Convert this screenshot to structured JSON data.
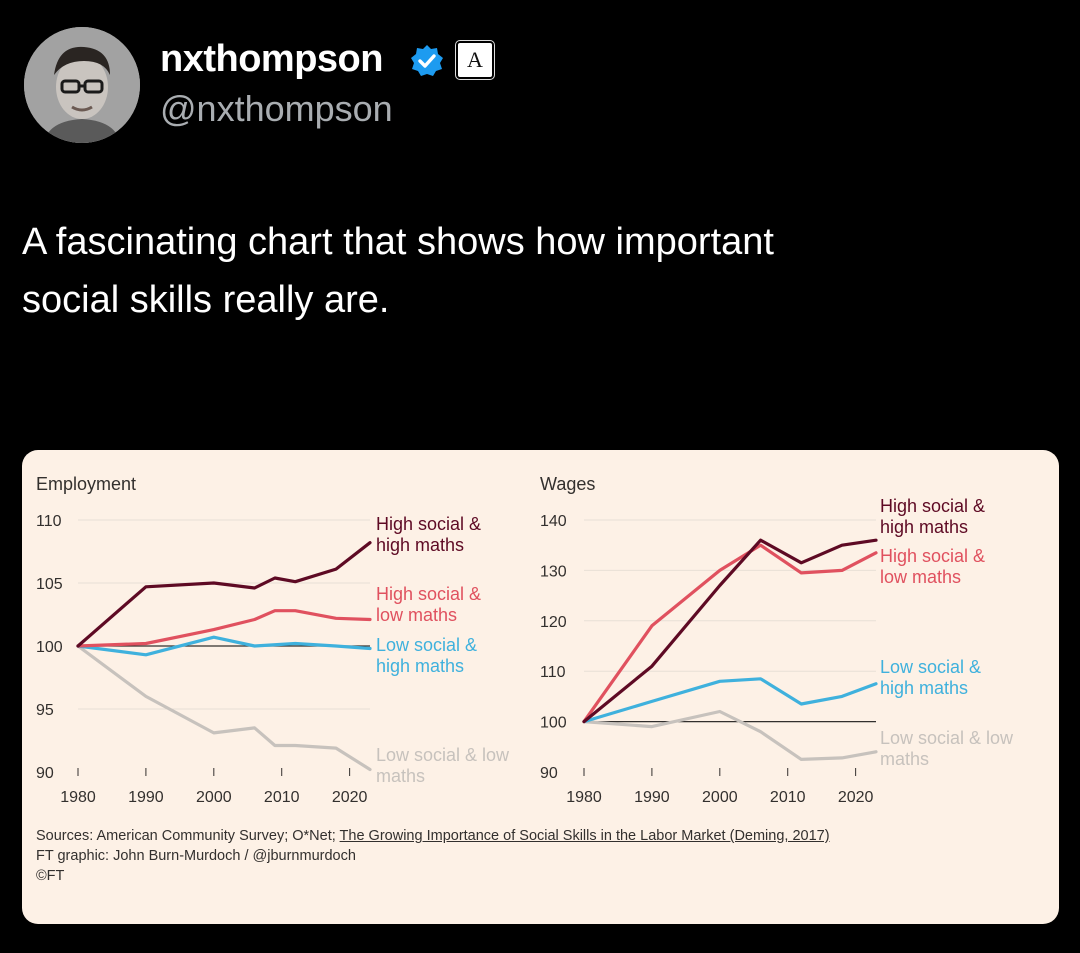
{
  "tweet": {
    "display_name": "nxthompson",
    "handle": "@nxthompson",
    "affiliate_badge": "A",
    "text_line1": "A fascinating chart that shows how important",
    "text_line2": "social skills really are."
  },
  "icons": {
    "verified": "verified-check-icon",
    "avatar": "user-avatar"
  },
  "colors": {
    "background": "#000000",
    "card": "#fdf1e6",
    "high_social_high_maths": "#5e0a24",
    "high_social_low_maths": "#e0515f",
    "low_social_high_maths": "#3fb1dd",
    "low_social_low_maths": "#c7c2bd",
    "verified": "#1d9bf0"
  },
  "chart_data": [
    {
      "type": "line",
      "title": "Employment",
      "ylim": [
        90,
        110
      ],
      "yticks": [
        90,
        95,
        100,
        105,
        110
      ],
      "xticks": [
        1980,
        1990,
        2000,
        2010,
        2020
      ],
      "xlim": [
        1980,
        2023
      ],
      "reference_line": 100,
      "series": [
        {
          "name": "High social & high maths",
          "label_lines": [
            "High social &",
            "high maths"
          ],
          "color_key": "high_social_high_maths",
          "x": [
            1980,
            1990,
            2000,
            2006,
            2009,
            2012,
            2018,
            2023
          ],
          "y": [
            100,
            104.7,
            105,
            104.6,
            105.4,
            105.1,
            106.1,
            108.2
          ]
        },
        {
          "name": "High social & low maths",
          "label_lines": [
            "High social &",
            "low maths"
          ],
          "color_key": "high_social_low_maths",
          "x": [
            1980,
            1990,
            2000,
            2006,
            2009,
            2012,
            2018,
            2023
          ],
          "y": [
            100,
            100.2,
            101.3,
            102.1,
            102.8,
            102.8,
            102.2,
            102.1
          ]
        },
        {
          "name": "Low social & high maths",
          "label_lines": [
            "Low social &",
            "high maths"
          ],
          "color_key": "low_social_high_maths",
          "x": [
            1980,
            1990,
            2000,
            2006,
            2012,
            2018,
            2023
          ],
          "y": [
            100,
            99.3,
            100.7,
            100,
            100.2,
            100,
            99.8
          ]
        },
        {
          "name": "Low social & low maths",
          "label_lines": [
            "Low social & low",
            "maths"
          ],
          "color_key": "low_social_low_maths",
          "x": [
            1980,
            1990,
            2000,
            2006,
            2009,
            2012,
            2018,
            2023
          ],
          "y": [
            100,
            96,
            93.1,
            93.5,
            92.1,
            92.1,
            91.9,
            90.2
          ]
        }
      ]
    },
    {
      "type": "line",
      "title": "Wages",
      "ylim": [
        90,
        140
      ],
      "yticks": [
        90,
        100,
        110,
        120,
        130,
        140
      ],
      "xticks": [
        1980,
        1990,
        2000,
        2010,
        2020
      ],
      "xlim": [
        1980,
        2023
      ],
      "reference_line": 100,
      "series": [
        {
          "name": "High social & high maths",
          "label_lines": [
            "High social &",
            "high maths"
          ],
          "color_key": "high_social_high_maths",
          "x": [
            1980,
            1990,
            2000,
            2006,
            2012,
            2018,
            2023
          ],
          "y": [
            100,
            111,
            127,
            136,
            131.5,
            135,
            136
          ]
        },
        {
          "name": "High social & low maths",
          "label_lines": [
            "High social &",
            "low maths"
          ],
          "color_key": "high_social_low_maths",
          "x": [
            1980,
            1990,
            2000,
            2006,
            2012,
            2018,
            2023
          ],
          "y": [
            100,
            119,
            130,
            135,
            129.5,
            130,
            133.5
          ]
        },
        {
          "name": "Low social & high maths",
          "label_lines": [
            "Low social &",
            "high maths"
          ],
          "color_key": "low_social_high_maths",
          "x": [
            1980,
            1990,
            2000,
            2006,
            2012,
            2018,
            2023
          ],
          "y": [
            100,
            104,
            108,
            108.5,
            103.5,
            105,
            107.5
          ]
        },
        {
          "name": "Low social & low maths",
          "label_lines": [
            "Low social & low",
            "maths"
          ],
          "color_key": "low_social_low_maths",
          "x": [
            1980,
            1990,
            2000,
            2006,
            2012,
            2018,
            2023
          ],
          "y": [
            100,
            99,
            102,
            98,
            92.5,
            92.8,
            94
          ]
        }
      ]
    }
  ],
  "sources": {
    "prefix": "Sources: American Community Survey; O*Net; ",
    "link": "The Growing Importance of Social Skills in the Labor Market (Deming, 2017)",
    "graphic": "FT graphic: John Burn-Murdoch / @jburnmurdoch",
    "copyright": "©FT"
  }
}
